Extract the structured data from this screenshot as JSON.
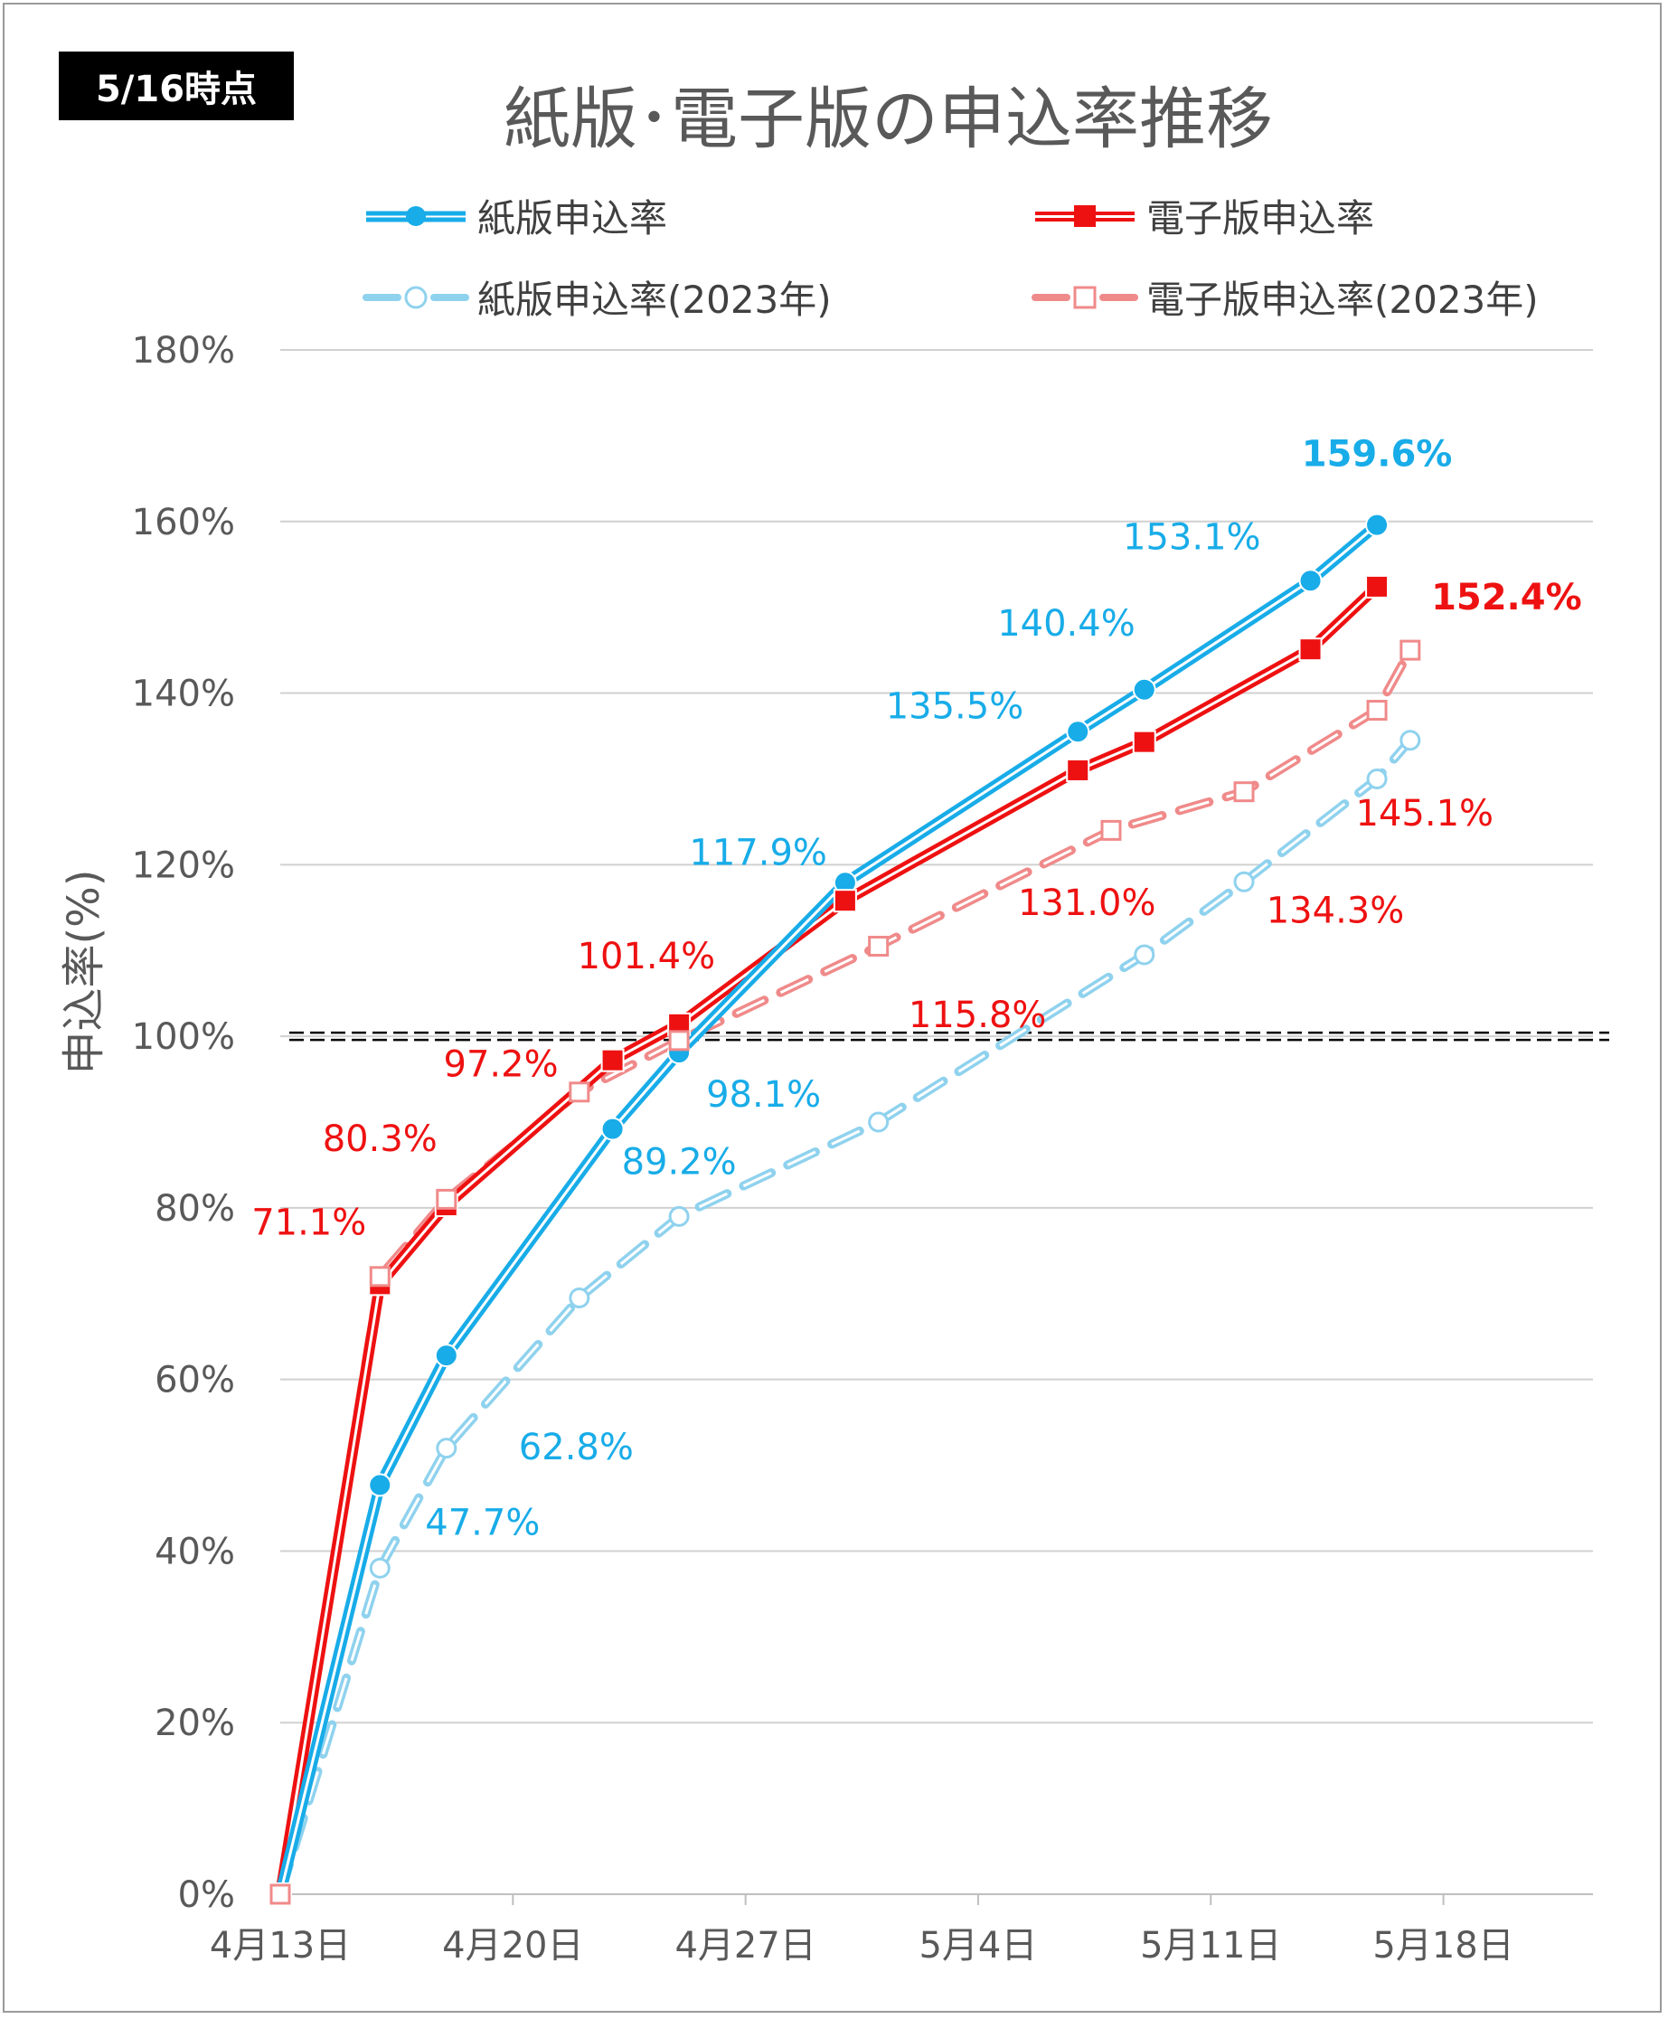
{
  "badge": "5/16時点",
  "chart_data": {
    "type": "line",
    "title": "紙版･電子版の申込率推移",
    "xlabel": "",
    "ylabel": "申込率(%)",
    "ylim": [
      0,
      180
    ],
    "yticks": [
      "0%",
      "20%",
      "40%",
      "60%",
      "80%",
      "100%",
      "120%",
      "140%",
      "160%",
      "180%"
    ],
    "x_ticks": [
      {
        "label": "4月13日",
        "day": 0
      },
      {
        "label": "4月20日",
        "day": 7
      },
      {
        "label": "4月27日",
        "day": 14
      },
      {
        "label": "5月4日",
        "day": 21
      },
      {
        "label": "5月11日",
        "day": 28
      },
      {
        "label": "5月18日",
        "day": 35
      }
    ],
    "xlim": [
      0,
      39.5
    ],
    "reference_line": {
      "value": 100,
      "style": "double-dashed"
    },
    "series": [
      {
        "name": "紙版申込率",
        "color": "#18ace8",
        "marker": "circle-filled",
        "x": [
          0,
          3,
          5,
          10,
          12,
          17,
          24,
          26,
          31,
          33
        ],
        "values": [
          0,
          47.7,
          62.8,
          89.2,
          98.1,
          117.9,
          135.5,
          140.4,
          153.1,
          159.6
        ],
        "labels": [
          "",
          "47.7%",
          "62.8%",
          "89.2%",
          "98.1%",
          "117.9%",
          "135.5%",
          "140.4%",
          "153.1%",
          "159.6%"
        ]
      },
      {
        "name": "電子版申込率",
        "color": "#ee1111",
        "marker": "square-filled",
        "x": [
          0,
          3,
          5,
          10,
          12,
          17,
          24,
          26,
          31,
          33
        ],
        "values": [
          0,
          71.1,
          80.3,
          97.2,
          101.4,
          115.8,
          131.0,
          134.3,
          145.1,
          152.4
        ],
        "labels": [
          "",
          "71.1%",
          "80.3%",
          "97.2%",
          "101.4%",
          "115.8%",
          "131.0%",
          "134.3%",
          "145.1%",
          "152.4%"
        ]
      },
      {
        "name": "紙版申込率(2023年)",
        "color": "#8fd2ee",
        "marker": "circle-open",
        "x": [
          0,
          3,
          5,
          9,
          12,
          18,
          26,
          29,
          33,
          34
        ],
        "values": [
          0,
          38,
          52,
          69.5,
          79,
          90,
          109.5,
          118,
          130,
          134.5
        ],
        "labels": []
      },
      {
        "name": "電子版申込率(2023年)",
        "color": "#f08a8a",
        "marker": "square-open",
        "x": [
          0,
          3,
          5,
          9,
          12,
          18,
          25,
          29,
          33,
          34
        ],
        "values": [
          0,
          72,
          81,
          93.5,
          99.5,
          110.5,
          124,
          128.5,
          138,
          145
        ],
        "labels": []
      }
    ]
  }
}
